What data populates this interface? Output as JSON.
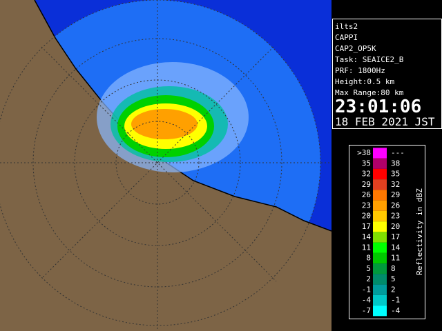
{
  "info_panel": {
    "lines": [
      "ilts2",
      "CAPPI",
      "CAP2_OP5K",
      "Task: SEAICE2_B",
      "PRF: 1800Hz",
      "Height:0.5 km",
      "Max Range:80 km"
    ],
    "time": "23:01:06",
    "date": "18 FEB 2021 JST"
  },
  "legend": {
    "title": "Reflectivity in dBZ",
    "rows": [
      {
        "low": ">38",
        "high": "---",
        "color": "#ff00ff"
      },
      {
        "low": "35",
        "high": "38",
        "color": "#b0006a"
      },
      {
        "low": "32",
        "high": "35",
        "color": "#ff0000"
      },
      {
        "low": "29",
        "high": "32",
        "color": "#e04020"
      },
      {
        "low": "26",
        "high": "29",
        "color": "#ff7800"
      },
      {
        "low": "23",
        "high": "26",
        "color": "#ffa000"
      },
      {
        "low": "20",
        "high": "23",
        "color": "#ffc800"
      },
      {
        "low": "17",
        "high": "20",
        "color": "#ffff00"
      },
      {
        "low": "14",
        "high": "17",
        "color": "#80e000"
      },
      {
        "low": "11",
        "high": "14",
        "color": "#00ff00"
      },
      {
        "low": "8",
        "high": "11",
        "color": "#00c800"
      },
      {
        "low": "5",
        "high": "8",
        "color": "#009a3c"
      },
      {
        "low": "2",
        "high": "5",
        "color": "#008c6a"
      },
      {
        "low": "-1",
        "high": "2",
        "color": "#009c9c"
      },
      {
        "low": "-4",
        "high": "-1",
        "color": "#00c8c8"
      },
      {
        "low": "-7",
        "high": "-4",
        "color": "#00ffff"
      }
    ]
  }
}
